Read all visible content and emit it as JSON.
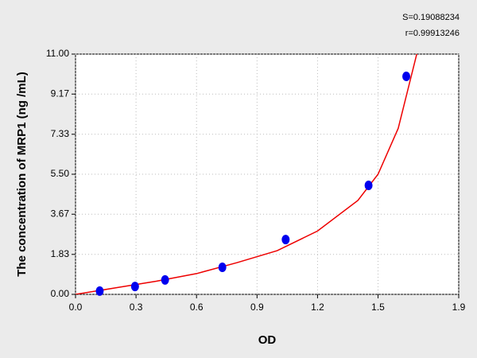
{
  "chart_data": {
    "type": "scatter",
    "x_label": "OD",
    "y_label": "The concentration of MRP1 (ng /mL)",
    "annotations": [
      "S=0.19088234",
      "r=0.99913246"
    ],
    "series": [
      {
        "color": "#0000ee",
        "x": [
          0.12,
          0.295,
          0.444,
          0.728,
          1.042,
          1.453,
          1.64
        ],
        "values": [
          0.15,
          0.36,
          0.66,
          1.24,
          2.51,
          4.99,
          9.98
        ]
      }
    ],
    "fit": {
      "color": "#ee0000",
      "x": [
        0,
        0.2,
        0.4,
        0.6,
        0.8,
        1.0,
        1.2,
        1.4,
        1.5,
        1.6,
        1.7
      ],
      "values": [
        0,
        0.3,
        0.6,
        0.95,
        1.45,
        2.0,
        2.9,
        4.3,
        5.5,
        7.6,
        11.3
      ]
    },
    "xlim": [
      0,
      1.9
    ],
    "ylim": [
      0,
      11
    ],
    "xticks": [
      {
        "value": 0,
        "label": "0.0"
      },
      0.3,
      0.6,
      0.9,
      1.2,
      1.5,
      1.9
    ],
    "yticks": [
      {
        "value": 0,
        "label": "0.00"
      },
      1.83,
      3.67,
      {
        "value": 5.5,
        "label": "5.50"
      },
      7.33,
      9.17,
      {
        "value": 11,
        "label": "11.00"
      }
    ],
    "grid": true
  }
}
